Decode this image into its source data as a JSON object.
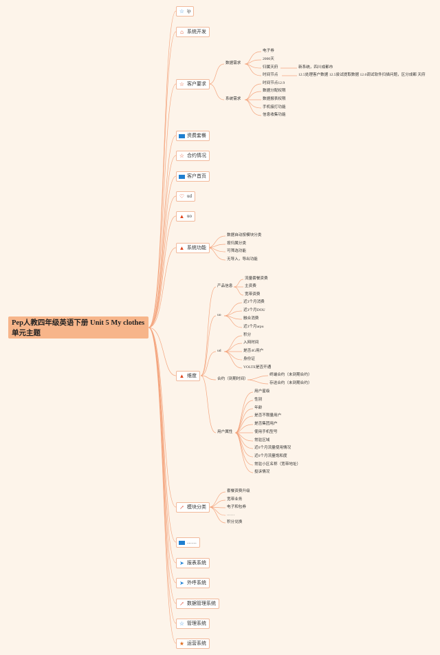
{
  "root": "Pep人教四年级英语下册 Unit 5 My clothes 单元主题",
  "branches": [
    {
      "label": "ip",
      "icon": "star-icon"
    },
    {
      "label": "系统开发",
      "icon": "home-icon"
    },
    {
      "label": "客户要求",
      "icon": "outline-star-icon"
    },
    {
      "label": "资费套餐",
      "icon": "flag-icon"
    },
    {
      "label": "合约情况",
      "icon": "outline-star-icon"
    },
    {
      "label": "客户首页",
      "icon": "flag-icon"
    },
    {
      "label": "ud",
      "icon": "heart-icon"
    },
    {
      "label": "uo",
      "icon": "fire-icon"
    },
    {
      "label": "系统功能",
      "icon": "fire-icon"
    },
    {
      "label": "维度",
      "icon": "fire-icon"
    },
    {
      "label": "模块分类",
      "icon": "chart-icon"
    },
    {
      "label": "……",
      "icon": "flag-icon"
    },
    {
      "label": "报表系统",
      "icon": "plane-icon"
    },
    {
      "label": "外呼系统",
      "icon": "plane-icon"
    },
    {
      "label": "数据管理系统",
      "icon": "chart-icon"
    },
    {
      "label": "管理系统",
      "icon": "star-icon"
    },
    {
      "label": "运营系统",
      "icon": "filled-star-icon"
    }
  ],
  "kehu": {
    "sub1": "数据需求",
    "sub1_items": [
      "电子券",
      "2000天",
      "归属天府",
      "时间节点"
    ],
    "guishu_note": "新系统，四川成都市",
    "time_note": "12.5处理客户数据 12.5尝试提取数据 12.6调试软件扫描问题，区分成都 天府",
    "sub2": "系统需求",
    "sub2_items": [
      "时间节点12.9",
      "数据分配权限",
      "数据报表权限",
      "手机接打功能",
      "信息收集功能"
    ]
  },
  "gongneng": [
    "数据自动按模块分类",
    "按归属分类",
    "可筛选功能",
    "无导入，导出功能"
  ],
  "weidu": {
    "g1": "产品信息",
    "g1_items": [
      "流量套餐资费",
      "主资费",
      "宽带资费"
    ],
    "g2": "uo",
    "g2_items": [
      "近3个月消费",
      "近3个月DOU",
      "融合消费",
      "近3个月arpu"
    ],
    "g3": "ud",
    "g3_items": [
      "积分",
      "入网时间",
      "是否4G用户",
      "身份证",
      "VOLTE是否开通"
    ],
    "g4": "合约（到期时间）",
    "g4_items": [
      "终端合约（未到期合约）",
      "存送合约（未到期合约）"
    ],
    "g5": "用户属性",
    "g5_items": [
      "用户星级",
      "性别",
      "年龄",
      "是否不限量用户",
      "是否集团用户",
      "使用手机型号",
      "常驻区域",
      "近6个月流量使用情况",
      "近6个月流量饱和度",
      "常驻小区名称（宽带地址）",
      "投诉情况"
    ]
  },
  "mokuai": [
    "套餐资费升级",
    "宽带业务",
    "电子和包券",
    "……",
    "积分兑换"
  ],
  "colors": {
    "line": "#f0a07a",
    "bg": "#fdf4ea",
    "root": "#f7b58a",
    "border": "#f1b89a"
  }
}
